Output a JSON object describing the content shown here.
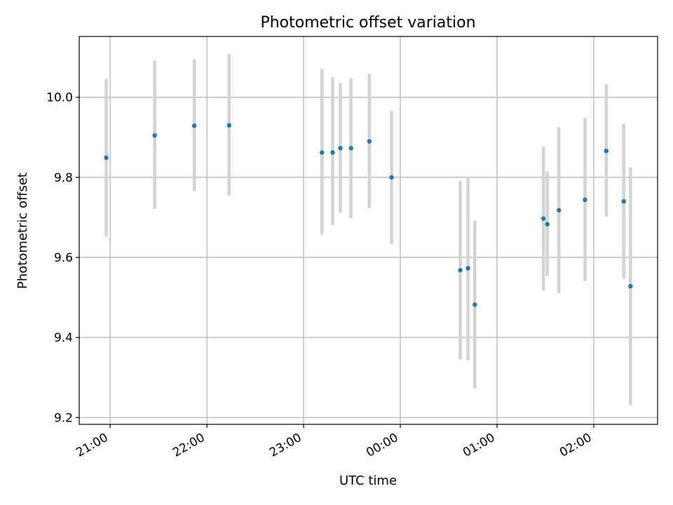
{
  "chart_data": {
    "type": "scatter",
    "title": "Photometric offset variation",
    "xlabel": "UTC time",
    "ylabel": "Photometric offset",
    "x_tick_labels": [
      "21:00",
      "22:00",
      "23:00",
      "00:00",
      "01:00",
      "02:00"
    ],
    "y_ticks": [
      9.2,
      9.4,
      9.6,
      9.8,
      10.0
    ],
    "y_tick_labels": [
      "9.2",
      "9.4",
      "9.6",
      "9.8",
      "10.0"
    ],
    "x_tick_hours": [
      21,
      22,
      23,
      24,
      25,
      26
    ],
    "xlim_hours": [
      20.68,
      26.66
    ],
    "ylim": [
      9.183,
      10.152
    ],
    "grid": true,
    "marker_color": "#1f77b4",
    "errorbar_color": "#d3d3d3",
    "points": [
      {
        "t": 20.96,
        "y": 9.849,
        "lo": 9.652,
        "hi": 10.046
      },
      {
        "t": 21.46,
        "y": 9.905,
        "lo": 9.721,
        "hi": 10.092
      },
      {
        "t": 21.87,
        "y": 9.929,
        "lo": 9.766,
        "hi": 10.095
      },
      {
        "t": 22.23,
        "y": 9.93,
        "lo": 9.754,
        "hi": 10.108
      },
      {
        "t": 23.19,
        "y": 9.862,
        "lo": 9.657,
        "hi": 10.071
      },
      {
        "t": 23.3,
        "y": 9.862,
        "lo": 9.68,
        "hi": 10.05
      },
      {
        "t": 23.38,
        "y": 9.873,
        "lo": 9.712,
        "hi": 10.036
      },
      {
        "t": 23.49,
        "y": 9.873,
        "lo": 9.698,
        "hi": 10.048
      },
      {
        "t": 23.68,
        "y": 9.89,
        "lo": 9.723,
        "hi": 10.059
      },
      {
        "t": 23.91,
        "y": 9.8,
        "lo": 9.633,
        "hi": 9.966
      },
      {
        "t": 24.62,
        "y": 9.568,
        "lo": 9.345,
        "hi": 9.791
      },
      {
        "t": 24.7,
        "y": 9.573,
        "lo": 9.343,
        "hi": 9.8
      },
      {
        "t": 24.77,
        "y": 9.482,
        "lo": 9.273,
        "hi": 9.692
      },
      {
        "t": 25.48,
        "y": 9.697,
        "lo": 9.517,
        "hi": 9.877
      },
      {
        "t": 25.52,
        "y": 9.683,
        "lo": 9.554,
        "hi": 9.815
      },
      {
        "t": 25.64,
        "y": 9.718,
        "lo": 9.511,
        "hi": 9.925
      },
      {
        "t": 25.91,
        "y": 9.744,
        "lo": 9.541,
        "hi": 9.949
      },
      {
        "t": 26.13,
        "y": 9.866,
        "lo": 9.702,
        "hi": 10.033
      },
      {
        "t": 26.31,
        "y": 9.74,
        "lo": 9.547,
        "hi": 9.934
      },
      {
        "t": 26.38,
        "y": 9.528,
        "lo": 9.231,
        "hi": 9.825
      }
    ]
  }
}
